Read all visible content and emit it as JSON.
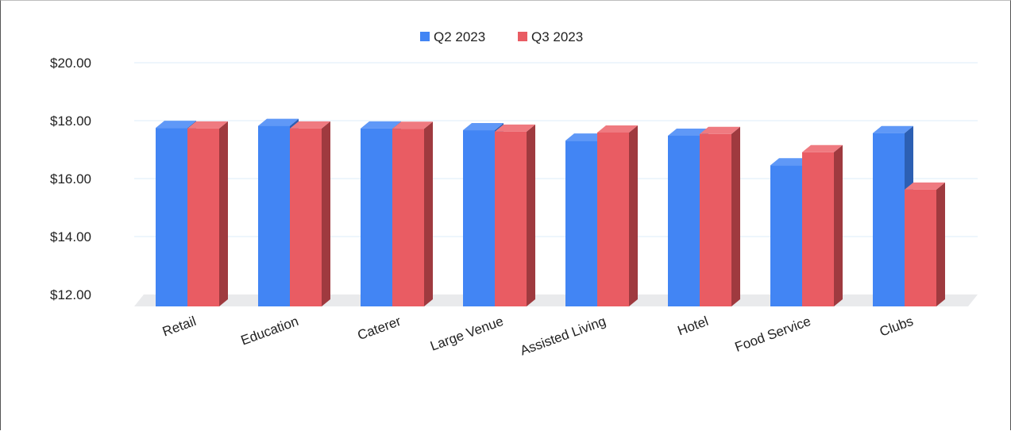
{
  "colors": {
    "q2_face": "#4285f4",
    "q2_top": "#5f98f7",
    "q2_side": "#2c5fb3",
    "q3_face": "#e95c63",
    "q3_top": "#ef7a80",
    "q3_side": "#9f3a3f",
    "floor": "#e9eaec",
    "grid": "#e9f3fb",
    "text": "#222222"
  },
  "chart_data": {
    "type": "bar",
    "categories": [
      "Retail",
      "Education",
      "Caterer",
      "Large Venue",
      "Assisted Living",
      "Hotel",
      "Food Service",
      "Clubs"
    ],
    "series": [
      {
        "name": "Q2 2023",
        "values": [
          17.75,
          17.82,
          17.73,
          17.67,
          17.31,
          17.48,
          16.46,
          17.57
        ]
      },
      {
        "name": "Q3 2023",
        "values": [
          17.73,
          17.73,
          17.72,
          17.62,
          17.59,
          17.54,
          16.91,
          15.62
        ]
      }
    ],
    "ylim": [
      12,
      20
    ],
    "yticks": [
      "$12.00",
      "$14.00",
      "$16.00",
      "$18.00",
      "$20.00"
    ],
    "title": "",
    "xlabel": "",
    "ylabel": "",
    "legend_position": "top-center",
    "grid": true,
    "style": "3d-column"
  }
}
